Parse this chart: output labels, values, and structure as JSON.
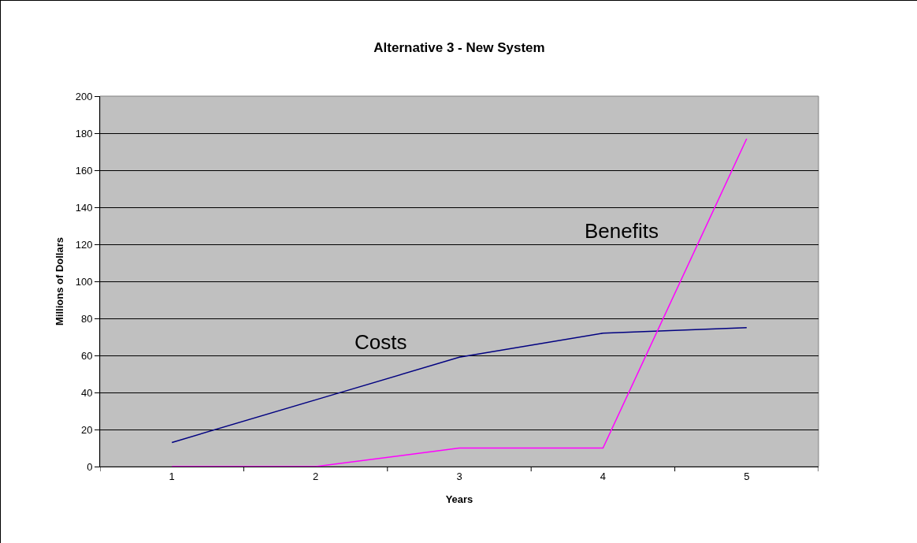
{
  "chart_data": {
    "type": "line",
    "title": "Alternative 3 - New System",
    "xlabel": "Years",
    "ylabel": "Millions of Dollars",
    "categories": [
      "1",
      "2",
      "3",
      "4",
      "5"
    ],
    "series": [
      {
        "name": "Costs",
        "color": "#000080",
        "values": [
          13,
          36,
          59,
          72,
          75
        ]
      },
      {
        "name": "Benefits",
        "color": "#ff00ff",
        "values": [
          0,
          0,
          10,
          10,
          177
        ]
      }
    ],
    "ylim": [
      0,
      200
    ],
    "yticks": [
      0,
      20,
      40,
      60,
      80,
      100,
      120,
      140,
      160,
      180,
      200
    ],
    "grid": "y",
    "legend": false,
    "marker": "none",
    "line_style": "solid"
  }
}
